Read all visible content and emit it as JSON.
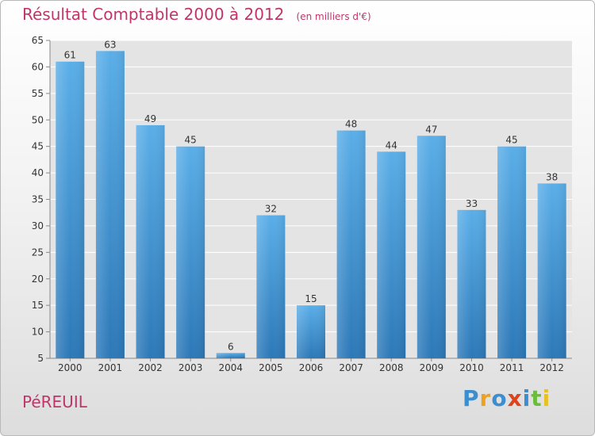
{
  "header": {
    "title": "Résultat Comptable 2000 à 2012",
    "unit": "(en milliers d'€)"
  },
  "footer": {
    "town": "PéREUIL",
    "logo": [
      "P",
      "r",
      "o",
      "x",
      "i",
      "t",
      "i"
    ],
    "logo_colors": [
      "#3c8ed0",
      "#f0a020",
      "#3c8ed0",
      "#e0421b",
      "#3c8ed0",
      "#6cbd3c",
      "#e8c020"
    ]
  },
  "colors": {
    "bar_top": "#5aaee8",
    "bar_bottom": "#2c78b8",
    "title": "#c0356a",
    "grid": "#ffffff"
  },
  "chart_data": {
    "type": "bar",
    "title": "Résultat Comptable 2000 à 2012",
    "ylabel": "(en milliers d'€)",
    "xlabel": "",
    "categories": [
      "2000",
      "2001",
      "2002",
      "2003",
      "2004",
      "2005",
      "2006",
      "2007",
      "2008",
      "2009",
      "2010",
      "2011",
      "2012"
    ],
    "values": [
      61,
      63,
      49,
      45,
      6,
      32,
      15,
      48,
      44,
      47,
      33,
      45,
      38
    ],
    "ylim": [
      5,
      65
    ],
    "yticks": [
      5,
      10,
      15,
      20,
      25,
      30,
      35,
      40,
      45,
      50,
      55,
      60,
      65
    ],
    "grid": true,
    "data_labels": true
  }
}
